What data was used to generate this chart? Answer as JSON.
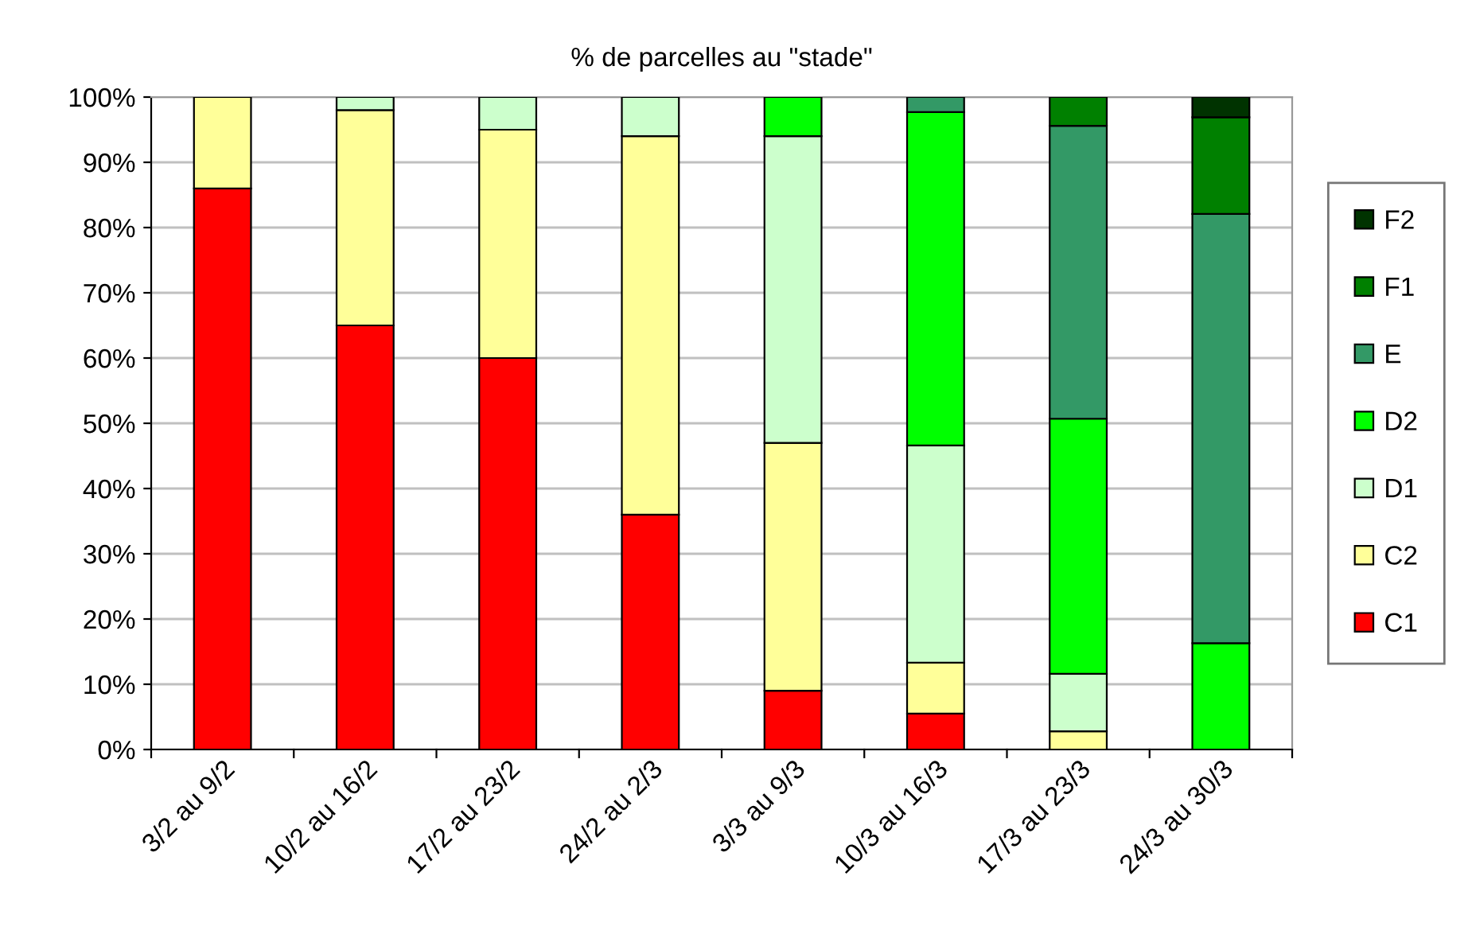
{
  "chart_data": {
    "type": "bar",
    "stacked": true,
    "title": "% de parcelles au \"stade\"",
    "categories": [
      "3/2 au 9/2",
      "10/2 au 16/2",
      "17/2 au 23/2",
      "24/2 au 2/3",
      "3/3 au 9/3",
      "10/3 au 16/3",
      "17/3 au 23/3",
      "24/3 au 30/3"
    ],
    "series": [
      {
        "name": "C1",
        "color": "#ff0000",
        "values": [
          86,
          65,
          60,
          36,
          9,
          5.5,
          null,
          null
        ]
      },
      {
        "name": "C2",
        "color": "#ffff99",
        "values": [
          14,
          33,
          35,
          58,
          38,
          7.8,
          2.8,
          null
        ]
      },
      {
        "name": "D1",
        "color": "#ccffcc",
        "values": [
          null,
          2,
          5,
          6,
          47,
          33.3,
          8.8,
          null
        ]
      },
      {
        "name": "D2",
        "color": "#00ff00",
        "values": [
          null,
          null,
          null,
          null,
          6,
          51.1,
          39.1,
          16.3
        ]
      },
      {
        "name": "E",
        "color": "#339966",
        "values": [
          null,
          null,
          null,
          null,
          null,
          2.3,
          44.9,
          65.8
        ]
      },
      {
        "name": "F1",
        "color": "#008000",
        "values": [
          null,
          null,
          null,
          null,
          null,
          null,
          4.4,
          14.8
        ]
      },
      {
        "name": "F2",
        "color": "#003300",
        "values": [
          null,
          null,
          null,
          null,
          null,
          null,
          null,
          3.1
        ]
      }
    ],
    "ylim": [
      0,
      100
    ],
    "yticks": [
      {
        "value": 0,
        "label": "0%"
      },
      {
        "value": 10,
        "label": "10%"
      },
      {
        "value": 20,
        "label": "20%"
      },
      {
        "value": 30,
        "label": "30%"
      },
      {
        "value": 40,
        "label": "40%"
      },
      {
        "value": 50,
        "label": "50%"
      },
      {
        "value": 60,
        "label": "60%"
      },
      {
        "value": 70,
        "label": "70%"
      },
      {
        "value": 80,
        "label": "80%"
      },
      {
        "value": 90,
        "label": "90%"
      },
      {
        "value": 100,
        "label": "100%"
      }
    ],
    "grid": "y",
    "legend": "right"
  }
}
